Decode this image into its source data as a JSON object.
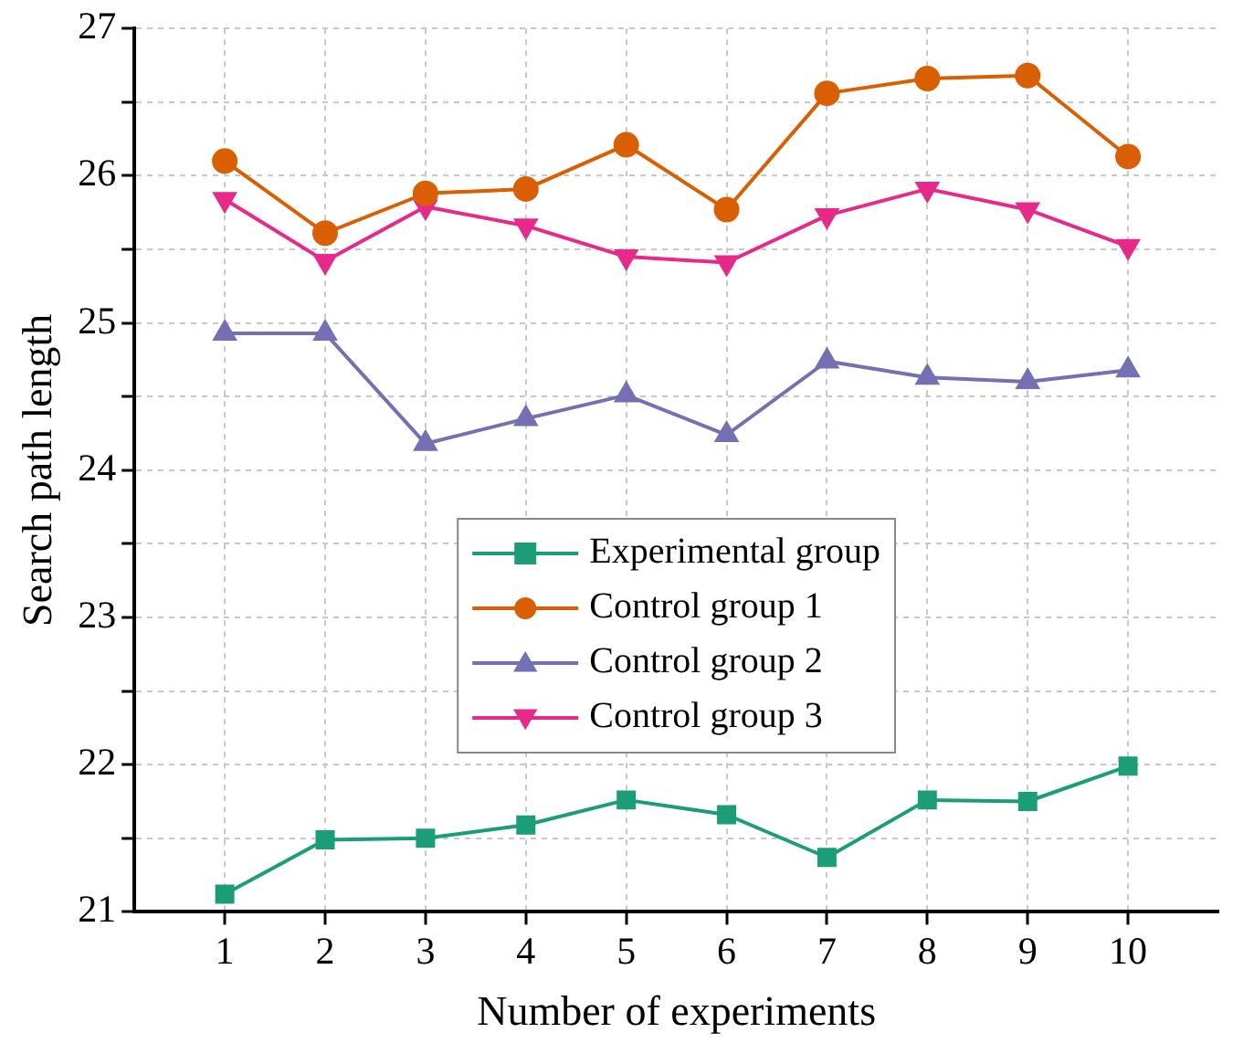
{
  "chart_data": {
    "type": "line",
    "xlabel": "Number of experiments",
    "ylabel": "Search path length",
    "x": [
      1,
      2,
      3,
      4,
      5,
      6,
      7,
      8,
      9,
      10
    ],
    "series": [
      {
        "name": "Experimental group",
        "color": "#1b9e77",
        "marker": "square",
        "values": [
          21.12,
          21.49,
          21.5,
          21.59,
          21.76,
          21.66,
          21.37,
          21.76,
          21.75,
          21.99
        ]
      },
      {
        "name": "Control group 1",
        "color": "#d95f02",
        "marker": "circle",
        "values": [
          26.1,
          25.61,
          25.88,
          25.91,
          26.21,
          25.77,
          26.56,
          26.66,
          26.68,
          26.13
        ]
      },
      {
        "name": "Control group 2",
        "color": "#7570b3",
        "marker": "triangle",
        "values": [
          24.93,
          24.93,
          24.18,
          24.35,
          24.51,
          24.24,
          24.74,
          24.63,
          24.6,
          24.68
        ]
      },
      {
        "name": "Control group 3",
        "color": "#e7298a",
        "marker": "triangle-down",
        "values": [
          25.84,
          25.42,
          25.79,
          25.66,
          25.45,
          25.41,
          25.73,
          25.91,
          25.77,
          25.52
        ]
      }
    ],
    "xlim": [
      0.1,
      10.9
    ],
    "xticks": [
      1,
      2,
      3,
      4,
      5,
      6,
      7,
      8,
      9,
      10
    ],
    "ylim": [
      21,
      27
    ],
    "yticks": [
      21,
      {
        "value": 21.5,
        "label": null
      },
      22,
      {
        "value": 22.5,
        "label": null
      },
      23,
      {
        "value": 23.5,
        "label": null
      },
      24,
      {
        "value": 24.5,
        "label": null
      },
      25,
      {
        "value": 25.5,
        "label": null
      },
      26,
      {
        "value": 26.5,
        "label": null
      },
      27
    ],
    "grid": true,
    "legend": "center",
    "line_style": "solid"
  }
}
